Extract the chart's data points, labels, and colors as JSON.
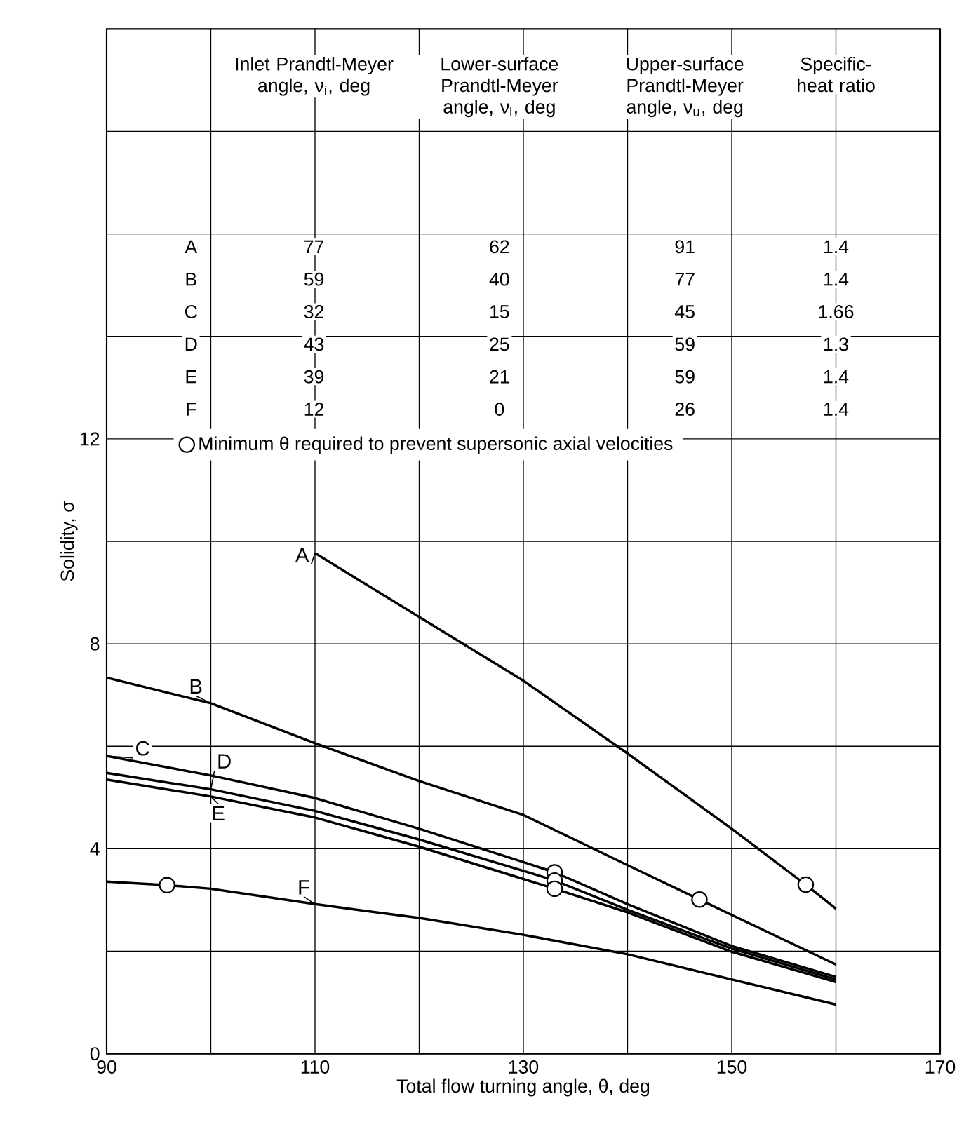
{
  "chart_data": {
    "type": "line",
    "xlabel": "Total flow turning angle, θ, deg",
    "ylabel": "Solidity, σ",
    "xlim": [
      90,
      170
    ],
    "ylim": [
      0,
      20
    ],
    "xticks": [
      90,
      {
        "value": 100,
        "label": null
      },
      110,
      {
        "value": 120,
        "label": null
      },
      130,
      {
        "value": 140,
        "label": null
      },
      150,
      {
        "value": 160,
        "label": null
      },
      170
    ],
    "yticks": [
      0,
      {
        "value": 2,
        "label": null
      },
      4,
      {
        "value": 6,
        "label": null
      },
      8,
      {
        "value": 10,
        "label": null
      },
      12,
      {
        "value": 14,
        "label": null
      },
      {
        "value": 16,
        "label": null
      },
      {
        "value": 18,
        "label": null
      },
      {
        "value": 20,
        "label": null
      }
    ],
    "grid": true,
    "marker": "none",
    "legend": "left",
    "series": [
      {
        "name": "A",
        "color": "#000000",
        "x": [
          110,
          130,
          140,
          150,
          157.1,
          160
        ],
        "values": [
          9.77,
          7.28,
          5.86,
          4.39,
          3.3,
          2.83
        ]
      },
      {
        "name": "B",
        "color": "#000000",
        "x": [
          90,
          100,
          110,
          120,
          130,
          140,
          146.9,
          160
        ],
        "values": [
          7.34,
          6.84,
          6.06,
          5.32,
          4.66,
          3.68,
          3.01,
          1.74
        ]
      },
      {
        "name": "C",
        "color": "#000000",
        "x": [
          90,
          100,
          110,
          120,
          130,
          133,
          140,
          150,
          160
        ],
        "values": [
          5.81,
          5.43,
          4.99,
          4.39,
          3.74,
          3.54,
          2.92,
          2.1,
          1.5
        ]
      },
      {
        "name": "D",
        "color": "#000000",
        "x": [
          90,
          100,
          110,
          120,
          130,
          133,
          140,
          150,
          160
        ],
        "values": [
          5.48,
          5.16,
          4.74,
          4.18,
          3.57,
          3.38,
          2.81,
          2.05,
          1.45
        ]
      },
      {
        "name": "E",
        "color": "#000000",
        "x": [
          90,
          100,
          110,
          120,
          130,
          133,
          140,
          150,
          160
        ],
        "values": [
          5.35,
          5.02,
          4.61,
          4.04,
          3.41,
          3.22,
          2.76,
          1.99,
          1.4
        ]
      },
      {
        "name": "F",
        "color": "#000000",
        "x": [
          90,
          95.8,
          100,
          110,
          120,
          130,
          140,
          150,
          160
        ],
        "values": [
          3.36,
          3.29,
          3.22,
          2.92,
          2.65,
          2.32,
          1.94,
          1.45,
          0.96
        ]
      },
      {
        "name": "Minimum θ required to prevent supersonic axial velocities",
        "type": "scatter",
        "marker": "circle",
        "color": "#000000",
        "x": [
          157.1,
          146.9,
          133,
          133,
          133,
          95.8
        ],
        "values": [
          3.3,
          3.01,
          3.54,
          3.38,
          3.22,
          3.29
        ]
      }
    ],
    "annotations": [
      "Inlet Prandtl-Meyer angle, ν$_{i}$, deg",
      "Lower-surface Prandtl-Meyer angle, ν$_{l}$, deg",
      "Upper-surface Prandtl-Meyer angle, ν$_{u}$, deg",
      "Specific-heat ratio",
      "A",
      "77",
      "62",
      "91",
      "1.4",
      "B",
      "59",
      "40",
      "77",
      "1.4",
      "C",
      "32",
      "15",
      "45",
      "1.66",
      "D",
      "43",
      "25",
      "59",
      "1.3",
      "E",
      "39",
      "21",
      "59",
      "1.4",
      "F",
      "12",
      "0",
      "26",
      "1.4"
    ]
  }
}
